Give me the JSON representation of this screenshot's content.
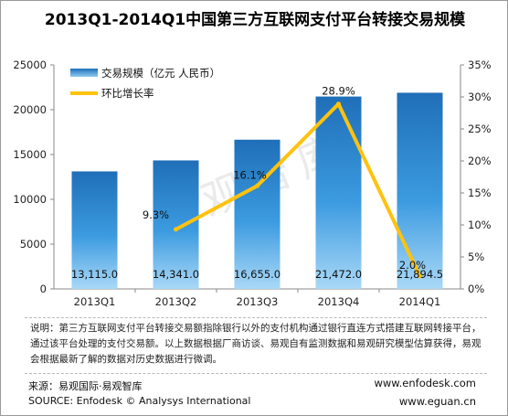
{
  "title": "2013Q1-2014Q1中国第三方互联网支付平台转接交易规模",
  "chart_data": {
    "type": "bar+line",
    "categories": [
      "2013Q1",
      "2013Q2",
      "2013Q3",
      "2013Q4",
      "2014Q1"
    ],
    "bar_series": {
      "name": "交易规模（亿元 人民币）",
      "values": [
        13115.0,
        14341.0,
        16655.0,
        21472.0,
        21894.5
      ],
      "labels": [
        "13,115.0",
        "14,341.0",
        "16,655.0",
        "21,472.0",
        "21,894.5"
      ],
      "color": "#2E8FD6"
    },
    "line_series": {
      "name": "环比增长率",
      "values": [
        null,
        9.3,
        16.1,
        28.9,
        2.0
      ],
      "labels": [
        "",
        "9.3%",
        "16.1%",
        "28.9%",
        "2.0%"
      ],
      "color": "#FFC20E"
    },
    "y_left": {
      "min": 0,
      "max": 25000,
      "ticks": [
        "0",
        "5000",
        "10000",
        "15000",
        "20000",
        "25000"
      ]
    },
    "y_right": {
      "min": 0,
      "max": 35,
      "ticks": [
        "0%",
        "5%",
        "10%",
        "15%",
        "20%",
        "25%",
        "30%",
        "35%"
      ]
    },
    "watermark": "易观智库",
    "legend_position": "top-left",
    "grid": false
  },
  "note": "说明：第三方互联网支付平台转接交易额指除银行以外的支付机构通过银行直连方式搭建互联网转接平台，通过该平台处理的支付交易额。以上数据根据厂商访谈、易观自有监测数据和易观研究模型估算获得，易观会根据最新了解的数据对历史数据进行微调。",
  "source": {
    "line1": "来源：易观国际·易观智库",
    "line2": "SOURCE: Enfodesk © Analysys International",
    "site1": "www.enfodesk.com",
    "site2": "www.eguan.cn"
  }
}
